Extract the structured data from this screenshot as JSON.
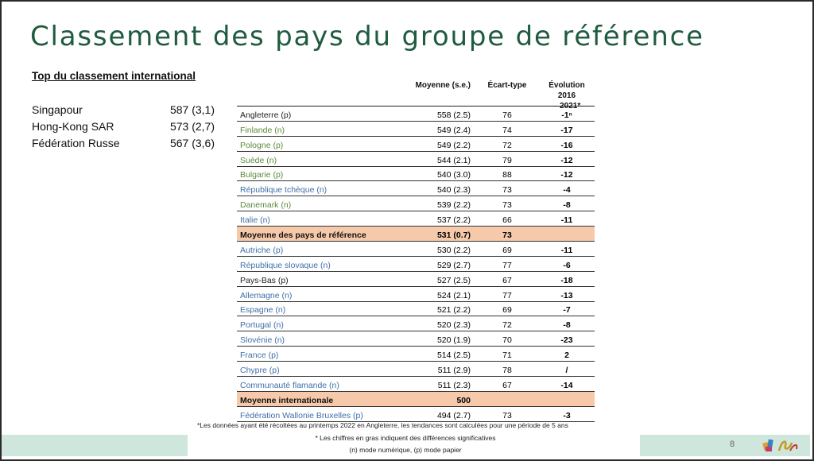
{
  "slide": {
    "title": "Classement des pays du groupe de référence",
    "page_number": "8"
  },
  "top_ranking": {
    "title": "Top du classement international",
    "items": [
      {
        "country": "Singapour",
        "score": "587 (3,1)"
      },
      {
        "country": "Hong-Kong SAR",
        "score": "573 (2,7)"
      },
      {
        "country": "Fédération Russe",
        "score": "567 (3,6)"
      }
    ]
  },
  "table": {
    "headers": {
      "country": "",
      "mean": "Moyenne (s.e.)",
      "sd": "Écart-type",
      "evolution_line1": "Évolution 2016",
      "evolution_line2": "– 2021*"
    },
    "rows": [
      {
        "country": "Angleterre (p)",
        "mean": "558 (2.5)",
        "sd": "76",
        "evo": "-1ⁿ",
        "color": "#222222",
        "highlight": false
      },
      {
        "country": "Finlande (n)",
        "mean": "549 (2.4)",
        "sd": "74",
        "evo": "-17",
        "color": "#5b8a3a",
        "highlight": false
      },
      {
        "country": "Pologne (p)",
        "mean": "549 (2.2)",
        "sd": "72",
        "evo": "-16",
        "color": "#5b8a3a",
        "highlight": false
      },
      {
        "country": "Suède (n)",
        "mean": "544 (2.1)",
        "sd": "79",
        "evo": "-12",
        "color": "#5b8a3a",
        "highlight": false
      },
      {
        "country": "Bulgarie (p)",
        "mean": "540 (3.0)",
        "sd": "88",
        "evo": "-12",
        "color": "#5b8a3a",
        "highlight": false
      },
      {
        "country": "République tchèque (n)",
        "mean": "540 (2.3)",
        "sd": "73",
        "evo": "-4",
        "color": "#3f6fa8",
        "highlight": false
      },
      {
        "country": "Danemark (n)",
        "mean": "539 (2.2)",
        "sd": "73",
        "evo": "-8",
        "color": "#5b8a3a",
        "highlight": false
      },
      {
        "country": "Italie (n)",
        "mean": "537 (2.2)",
        "sd": "66",
        "evo": "-11",
        "color": "#3f6fa8",
        "highlight": false
      },
      {
        "country": "Moyenne des pays de référence",
        "mean": "531 (0.7)",
        "sd": "73",
        "evo": "",
        "color": "#111111",
        "highlight": true
      },
      {
        "country": "Autriche (p)",
        "mean": "530 (2.2)",
        "sd": "69",
        "evo": "-11",
        "color": "#3f6fa8",
        "highlight": false
      },
      {
        "country": "République slovaque (n)",
        "mean": "529 (2.7)",
        "sd": "77",
        "evo": "-6",
        "color": "#3f6fa8",
        "highlight": false
      },
      {
        "country": "Pays-Bas (p)",
        "mean": "527 (2.5)",
        "sd": "67",
        "evo": "-18",
        "color": "#222222",
        "highlight": false
      },
      {
        "country": "Allemagne (n)",
        "mean": "524 (2.1)",
        "sd": "77",
        "evo": "-13",
        "color": "#3f6fa8",
        "highlight": false
      },
      {
        "country": "Espagne (n)",
        "mean": "521 (2.2)",
        "sd": "69",
        "evo": "-7",
        "color": "#3f6fa8",
        "highlight": false
      },
      {
        "country": "Portugal (n)",
        "mean": "520 (2.3)",
        "sd": "72",
        "evo": "-8",
        "color": "#3f6fa8",
        "highlight": false
      },
      {
        "country": "Slovénie (n)",
        "mean": "520 (1.9)",
        "sd": "70",
        "evo": "-23",
        "color": "#3f6fa8",
        "highlight": false
      },
      {
        "country": "France (p)",
        "mean": "514 (2.5)",
        "sd": "71",
        "evo": "2",
        "color": "#3f6fa8",
        "highlight": false
      },
      {
        "country": "Chypre (p)",
        "mean": "511 (2.9)",
        "sd": "78",
        "evo": "/",
        "color": "#3f6fa8",
        "highlight": false
      },
      {
        "country": "Communauté flamande (n)",
        "mean": "511 (2.3)",
        "sd": "67",
        "evo": "-14",
        "color": "#3f6fa8",
        "highlight": false
      },
      {
        "country": "Moyenne internationale",
        "mean": "500",
        "sd": "",
        "evo": "",
        "color": "#111111",
        "highlight": true
      },
      {
        "country": "Fédération Wallonie Bruxelles (p)",
        "mean": "494 (2.7)",
        "sd": "73",
        "evo": "-3",
        "color": "#3f6fa8",
        "highlight": false
      }
    ]
  },
  "footnotes": {
    "line1": "*Les données ayant été récoltées au printemps 2022 en Angleterre, les tendances sont calculées pour une période de 5 ans",
    "line2": "* Les chiffres en gras indiquent des différences significatives",
    "line3": "(n) mode numérique, (p) mode papier"
  },
  "colors": {
    "title_green": "#1f5b3e",
    "highlight_row": "#f6c9aa",
    "footer_bar": "#cfe6dc"
  },
  "logo": {
    "name": "logo-icon"
  }
}
